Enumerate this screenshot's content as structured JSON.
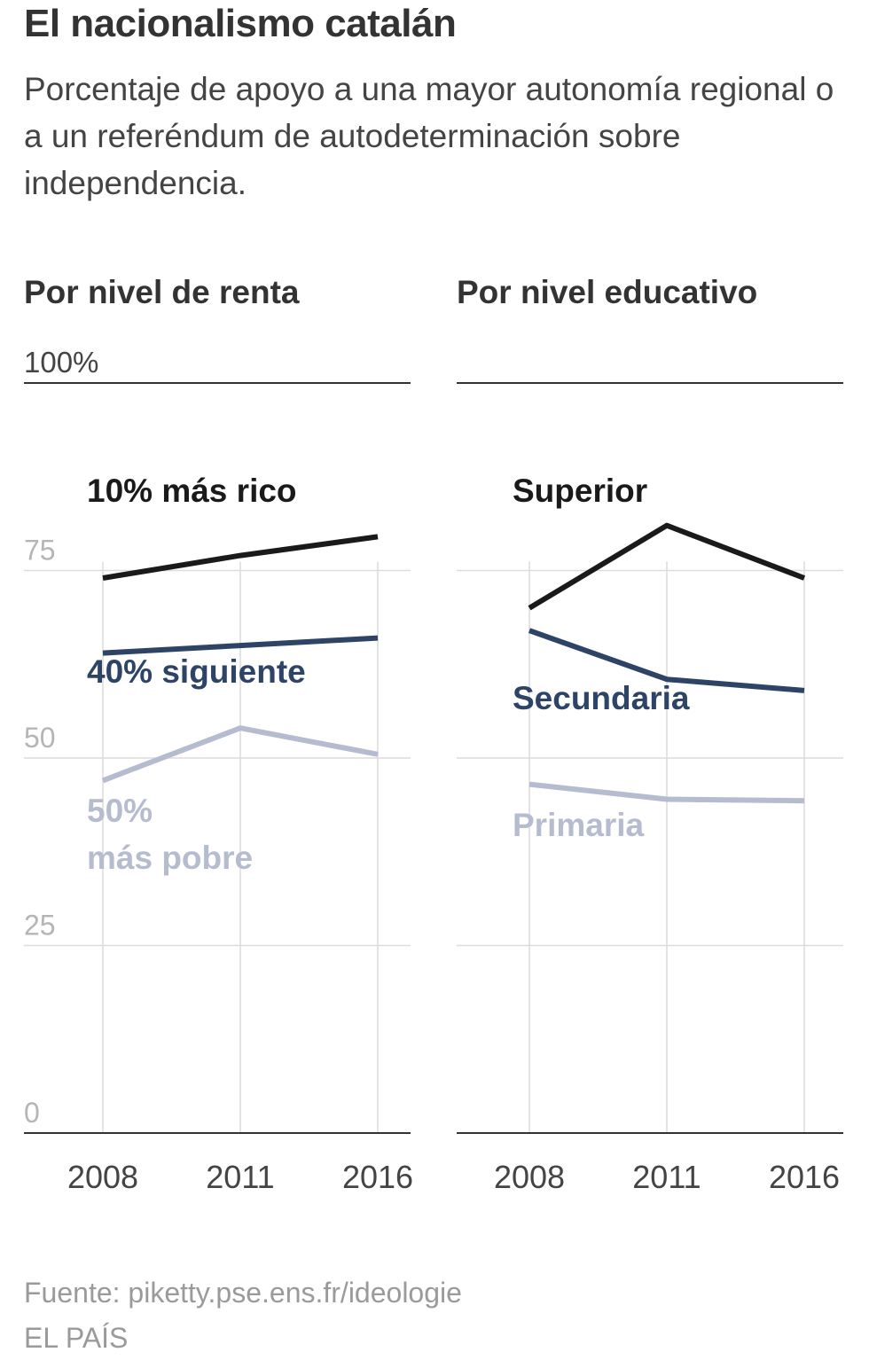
{
  "title": "El nacionalismo catalán",
  "subtitle": "Porcentaje de apoyo a una mayor autonomía regional o a un referéndum de autodeterminación sobre independencia.",
  "source": "Fuente: piketty.pse.ens.fr/ideologie",
  "credit": "EL PAÍS",
  "chart_data": [
    {
      "type": "line",
      "title": "Por nivel de renta",
      "x": [
        "2008",
        "2011",
        "2016"
      ],
      "ylim": [
        0,
        100
      ],
      "yticks": [
        "0",
        "25",
        "50",
        "75",
        "100%"
      ],
      "grid": true,
      "legend": "direct labels",
      "series": [
        {
          "name": "10% más rico",
          "values": [
            74,
            77,
            79.5
          ],
          "color": "#1a1a1a"
        },
        {
          "name": "40% siguiente",
          "values": [
            64,
            65,
            66
          ],
          "color": "#2e4466"
        },
        {
          "name": "50% más pobre",
          "values": [
            47,
            54,
            50.5
          ],
          "color": "#b6bccf",
          "label_lines": [
            "50%",
            "más pobre"
          ]
        }
      ]
    },
    {
      "type": "line",
      "title": "Por nivel educativo",
      "x": [
        "2008",
        "2011",
        "2016"
      ],
      "ylim": [
        0,
        100
      ],
      "grid": true,
      "legend": "direct labels",
      "series": [
        {
          "name": "Superior",
          "values": [
            70,
            81,
            74
          ],
          "color": "#1a1a1a"
        },
        {
          "name": "Secundaria",
          "values": [
            67,
            60.5,
            59
          ],
          "color": "#2e4466"
        },
        {
          "name": "Primaria",
          "values": [
            46.5,
            44.5,
            44.3
          ],
          "color": "#b6bccf"
        }
      ]
    }
  ]
}
